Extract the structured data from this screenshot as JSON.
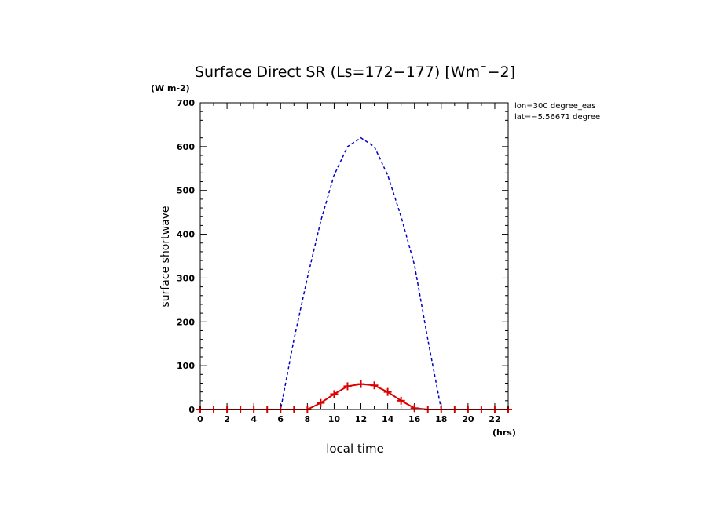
{
  "chart_data": {
    "type": "line",
    "title": "Surface Direct SR (Ls=172−177) [Wm¯−2]",
    "ylabel": "surface shortwave",
    "yunit": "(W m-2)",
    "xlabel": "local time",
    "xunit": "(hrs)",
    "xlim": [
      0,
      23
    ],
    "ylim": [
      0,
      700
    ],
    "xticks": [
      0,
      2,
      4,
      6,
      8,
      10,
      12,
      14,
      16,
      18,
      20,
      22
    ],
    "yticks": [
      0,
      100,
      200,
      300,
      400,
      500,
      600,
      700
    ],
    "annotations": [
      "lon=300 degree_eas",
      "lat=−5.56671 degree"
    ],
    "series": [
      {
        "name": "dashed",
        "color": "#0000cc",
        "style": "dashed",
        "x": [
          0,
          1,
          2,
          3,
          4,
          5,
          6,
          7,
          8,
          9,
          10,
          11,
          12,
          13,
          14,
          15,
          16,
          17,
          18,
          19,
          20,
          21,
          22,
          23
        ],
        "y": [
          0,
          0,
          0,
          0,
          0,
          0,
          0,
          160,
          300,
          430,
          535,
          600,
          620,
          600,
          535,
          440,
          330,
          160,
          0,
          0,
          0,
          0,
          0,
          0
        ]
      },
      {
        "name": "solid",
        "color": "#dd0000",
        "style": "solid-markers",
        "x": [
          0,
          1,
          2,
          3,
          4,
          5,
          6,
          7,
          8,
          9,
          10,
          11,
          12,
          13,
          14,
          15,
          16,
          17,
          18,
          19,
          20,
          21,
          22,
          23
        ],
        "y": [
          0,
          0,
          0,
          0,
          0,
          0,
          0,
          0,
          0,
          15,
          35,
          53,
          58,
          55,
          40,
          20,
          3,
          0,
          0,
          0,
          0,
          0,
          0,
          0
        ]
      }
    ]
  }
}
